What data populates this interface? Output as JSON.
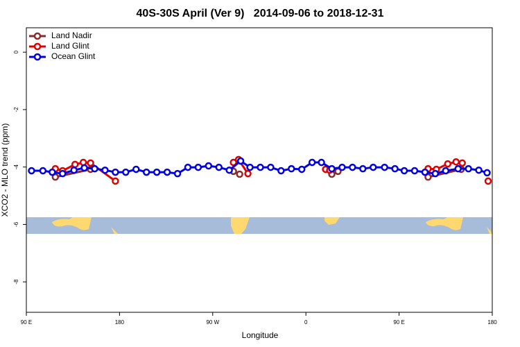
{
  "chart_data": {
    "type": "line",
    "title": "40S-30S April (Ver 9)   2014-09-06 to 2018-12-31",
    "xlabel": "Longitude",
    "ylabel": "XCO2 - MLO trend (ppm)",
    "xlim": [
      90,
      540
    ],
    "ylim": [
      -9.06,
      0.85
    ],
    "xticks": [
      {
        "value": 90,
        "label": "90 E"
      },
      180,
      {
        "value": 270,
        "label": "90 W"
      },
      {
        "value": 360,
        "label": "0"
      },
      {
        "value": 450,
        "label": "90 E"
      },
      {
        "value": 540,
        "label": "180"
      }
    ],
    "yticks": [
      0,
      -2,
      -4,
      -6,
      -8
    ],
    "legend": "top-left",
    "series": [
      {
        "name": "Land Nadir",
        "color": "#8b2a2a",
        "x": [
          118,
          152,
          null,
          290,
          296,
          null,
          385,
          391,
          null,
          478,
          510
        ],
        "values": [
          -4.35,
          -4.08,
          null,
          -4.15,
          -4.25,
          null,
          -4.25,
          -4.15,
          null,
          -4.35,
          -4.08
        ]
      },
      {
        "name": "Land Glint",
        "color": "#e00000",
        "x": [
          118,
          125,
          137,
          145,
          152,
          176,
          null,
          290,
          295,
          304,
          null,
          379,
          383,
          null,
          478,
          486,
          497,
          505,
          511,
          null,
          536
        ],
        "values": [
          -4.06,
          -4.13,
          -3.91,
          -3.84,
          -3.86,
          -4.49,
          null,
          -3.84,
          -3.74,
          -4.23,
          null,
          -4.08,
          -4.11,
          null,
          -4.06,
          -4.08,
          -3.89,
          -3.82,
          -3.86,
          null,
          -4.49
        ]
      },
      {
        "name": "Ocean Glint",
        "color": "#0000e0",
        "x": [
          95,
          106,
          115,
          125,
          136,
          146,
          156,
          166,
          176,
          186,
          196,
          206,
          216,
          226,
          236,
          246,
          256,
          266,
          276,
          286,
          297,
          306,
          316,
          326,
          336,
          346,
          356,
          366,
          375,
          385,
          395,
          405,
          415,
          425,
          436,
          446,
          455,
          465,
          475,
          485,
          495,
          507,
          517,
          527,
          535
        ],
        "values": [
          -4.13,
          -4.13,
          -4.18,
          -4.23,
          -4.11,
          -4.03,
          -4.06,
          -4.11,
          -4.18,
          -4.18,
          -4.08,
          -4.18,
          -4.18,
          -4.18,
          -4.23,
          -4.01,
          -4.01,
          -3.96,
          -4.01,
          -4.11,
          -3.79,
          -4.01,
          -4.01,
          -4.01,
          -4.13,
          -4.06,
          -4.08,
          -3.84,
          -3.84,
          -4.06,
          -4.01,
          -4.01,
          -4.06,
          -4.01,
          -4.01,
          -4.06,
          -4.13,
          -4.13,
          -4.18,
          -4.23,
          -4.13,
          -4.06,
          -4.06,
          -4.11,
          -4.2
        ]
      }
    ]
  }
}
